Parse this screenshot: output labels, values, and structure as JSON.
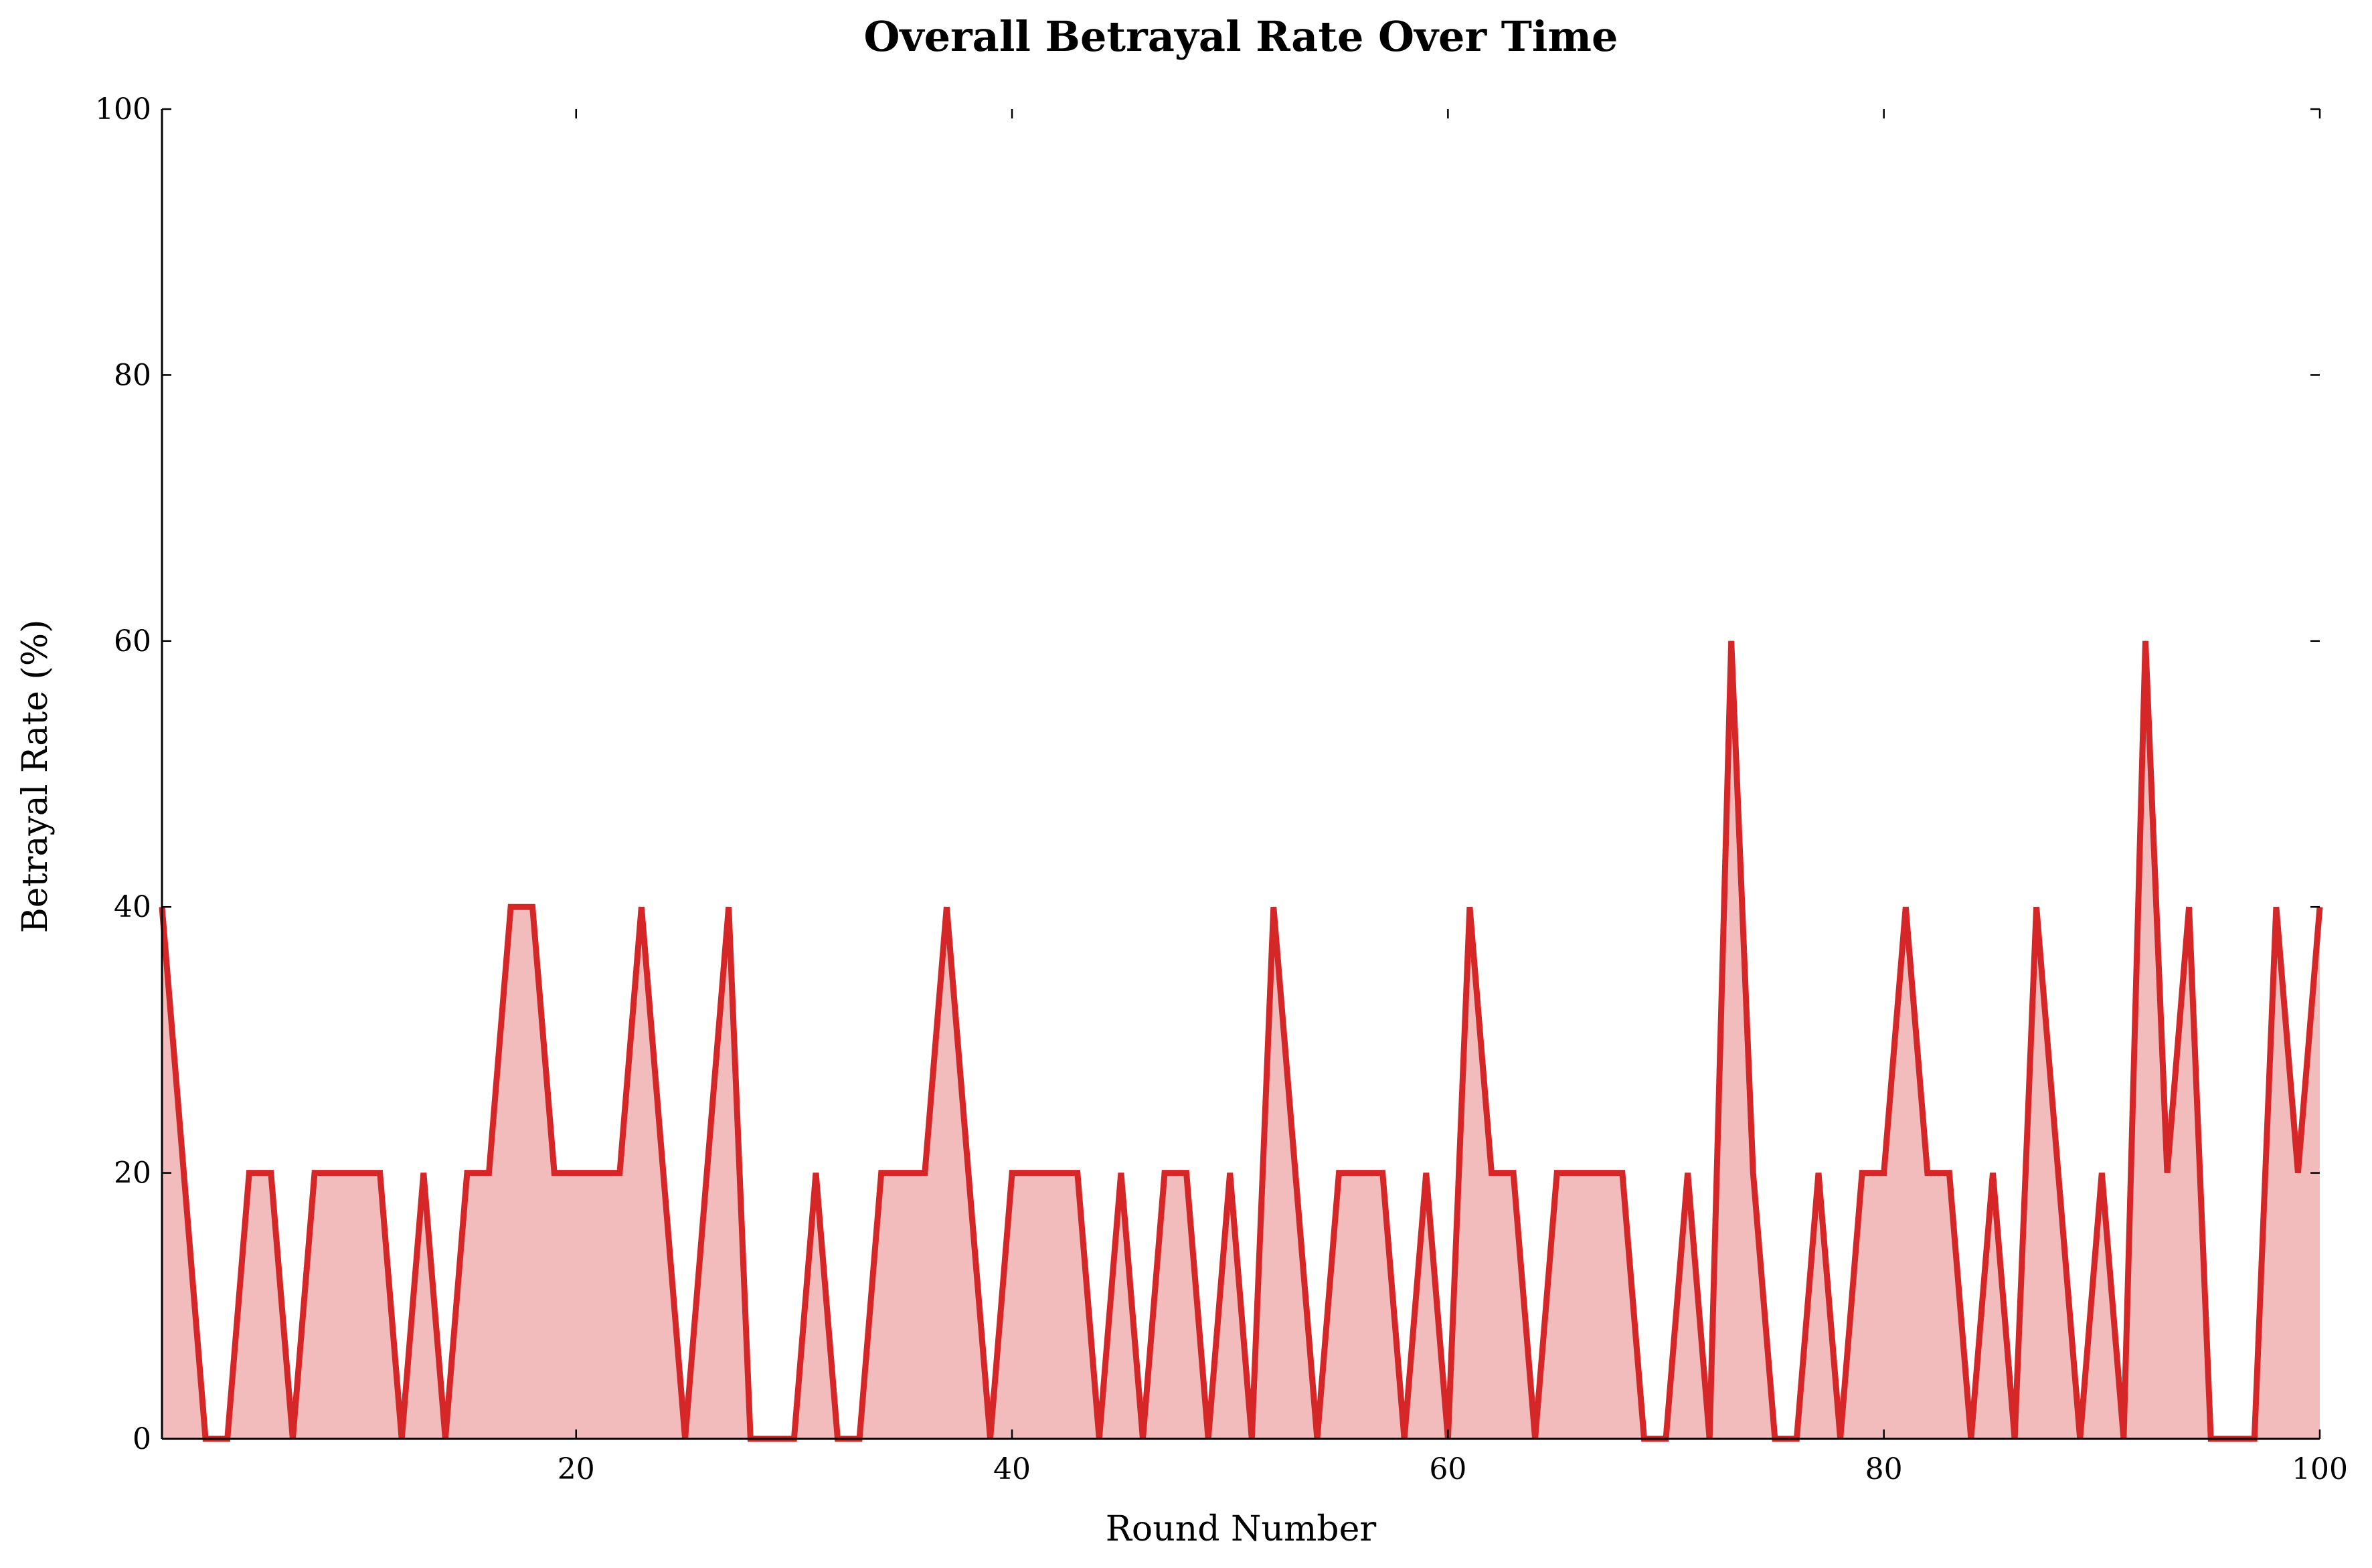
{
  "chart_data": {
    "type": "area",
    "title": "Overall Betrayal Rate Over Time",
    "xlabel": "Round Number",
    "ylabel": "Betrayal Rate (%)",
    "xlim": [
      1,
      100
    ],
    "ylim": [
      0,
      100
    ],
    "xticks": [
      20,
      40,
      60,
      80,
      100
    ],
    "yticks": [
      0,
      20,
      40,
      60,
      80,
      100
    ],
    "grid": false,
    "legend": "none",
    "colors": {
      "line": "#d62728",
      "fill": "#f2bcbd"
    },
    "series": [
      {
        "x": [
          1,
          2,
          3,
          4,
          5,
          6,
          7,
          8,
          9,
          10,
          11,
          12,
          13,
          14,
          15,
          16,
          17,
          18,
          19,
          20,
          21,
          22,
          23,
          24,
          25,
          26,
          27,
          28,
          29,
          30,
          31,
          32,
          33,
          34,
          35,
          36,
          37,
          38,
          39,
          40,
          41,
          42,
          43,
          44,
          45,
          46,
          47,
          48,
          49,
          50,
          51,
          52,
          53,
          54,
          55,
          56,
          57,
          58,
          59,
          60,
          61,
          62,
          63,
          64,
          65,
          66,
          67,
          68,
          69,
          70,
          71,
          72,
          73,
          74,
          75,
          76,
          77,
          78,
          79,
          80,
          81,
          82,
          83,
          84,
          85,
          86,
          87,
          88,
          89,
          90,
          91,
          92,
          93,
          94,
          95,
          96,
          97,
          98,
          99,
          100
        ],
        "values": [
          40,
          20,
          0,
          0,
          20,
          20,
          0,
          20,
          20,
          20,
          20,
          0,
          20,
          0,
          20,
          20,
          40,
          40,
          20,
          20,
          20,
          20,
          40,
          20,
          0,
          20,
          40,
          0,
          0,
          0,
          20,
          0,
          0,
          20,
          20,
          20,
          40,
          20,
          0,
          20,
          20,
          20,
          20,
          0,
          20,
          0,
          20,
          20,
          0,
          20,
          0,
          40,
          20,
          0,
          20,
          20,
          20,
          0,
          20,
          0,
          40,
          20,
          20,
          0,
          20,
          20,
          20,
          20,
          0,
          0,
          20,
          0,
          60,
          20,
          0,
          0,
          20,
          0,
          20,
          20,
          40,
          20,
          20,
          0,
          20,
          0,
          40,
          20,
          0,
          20,
          0,
          60,
          20,
          40,
          0,
          0,
          0,
          40,
          20,
          40
        ]
      }
    ]
  }
}
